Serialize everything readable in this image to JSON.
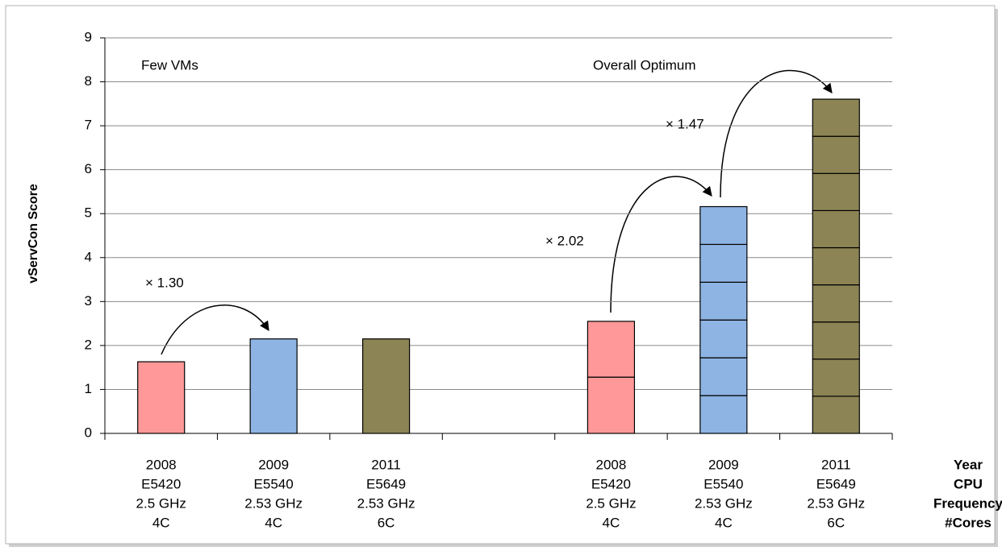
{
  "chart_data": {
    "type": "stacked_bar",
    "y_label": "vServCon Score",
    "x_label_lines": [
      "Year",
      "CPU",
      "Frequency",
      "#Cores"
    ],
    "categories": [
      [
        "2008",
        "E5420",
        "2.5 GHz",
        "4C"
      ],
      [
        "2009",
        "E5540",
        "2.53 GHz",
        "4C"
      ],
      [
        "2011",
        "E5649",
        "2.53 GHz",
        "6C"
      ],
      null,
      [
        "2008",
        "E5420",
        "2.5 GHz",
        "4C"
      ],
      [
        "2009",
        "E5540",
        "2.53 GHz",
        "4C"
      ],
      [
        "2011",
        "E5649",
        "2.53 GHz",
        "6C"
      ]
    ],
    "values": [
      [
        1.63
      ],
      [
        2.15
      ],
      [
        2.15
      ],
      null,
      [
        1.28,
        1.27
      ],
      [
        0.86,
        0.86,
        0.86,
        0.86,
        0.86,
        0.86
      ],
      [
        0.845,
        0.845,
        0.845,
        0.845,
        0.845,
        0.845,
        0.845,
        0.845,
        0.845
      ]
    ],
    "colors": [
      "#ff9999",
      "#8eb4e3",
      "#8c8454",
      null,
      "#ff9999",
      "#8eb4e3",
      "#8c8454"
    ],
    "annotations": [
      "Few VMs",
      "Overall Optimum",
      "× 1.30",
      "× 2.02",
      "× 1.47"
    ],
    "ylim": [
      0,
      9
    ],
    "yticks": [
      0,
      1,
      2,
      3,
      4,
      5,
      6,
      7,
      8,
      9
    ],
    "grid": true
  }
}
